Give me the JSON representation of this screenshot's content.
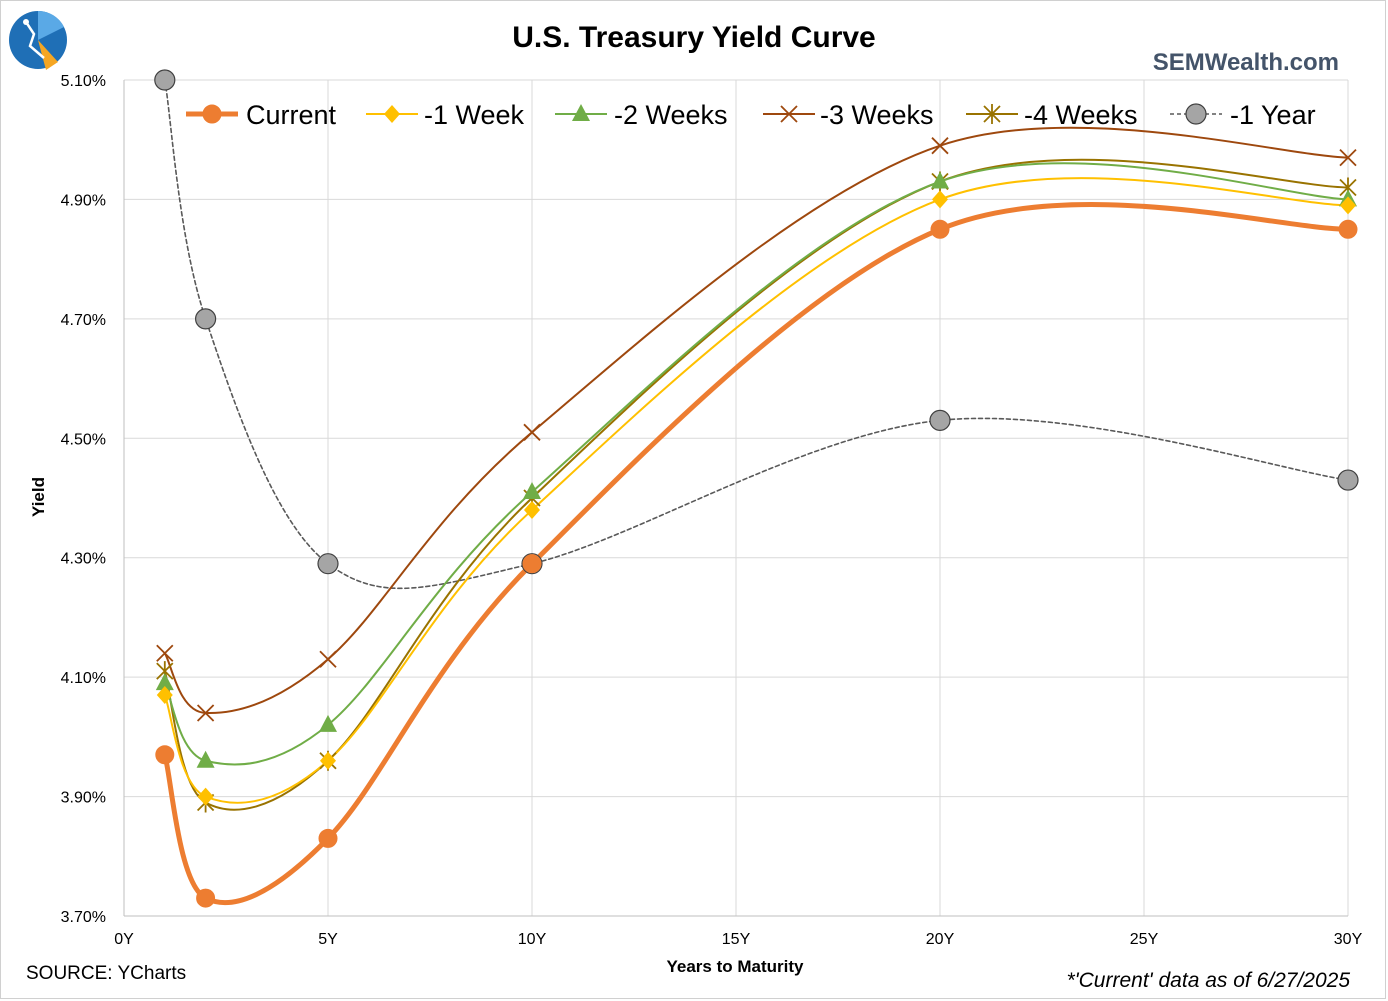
{
  "brand": {
    "site": "SEMWealth.com",
    "logo_name": "semwealth-logo-icon"
  },
  "footer": {
    "source": "SOURCE: YCharts",
    "note": "*'Current' data as of 6/27/2025"
  },
  "colors": {
    "current": "#ed7d31",
    "week1": "#ffc000",
    "week2": "#70ad47",
    "week3": "#9e480e",
    "week4": "#997300",
    "year1": "#595959",
    "year1_marker": "#a5a5a5",
    "grid": "#d9d9d9"
  },
  "chart_data": {
    "type": "line",
    "title": "U.S. Treasury Yield Curve",
    "xlabel": "Years to Maturity",
    "ylabel": "Yield",
    "xlim": [
      0,
      30
    ],
    "ylim": [
      3.7,
      5.1
    ],
    "x_ticks": [
      0,
      5,
      10,
      15,
      20,
      25,
      30
    ],
    "x_tick_labels": [
      "0Y",
      "5Y",
      "10Y",
      "15Y",
      "20Y",
      "25Y",
      "30Y"
    ],
    "y_ticks": [
      3.7,
      3.9,
      4.1,
      4.3,
      4.5,
      4.7,
      4.9,
      5.1
    ],
    "y_tick_labels": [
      "3.70%",
      "3.90%",
      "4.10%",
      "4.30%",
      "4.50%",
      "4.70%",
      "4.90%",
      "5.10%"
    ],
    "grid": "vertical and horizontal",
    "legend_position": "top",
    "x": [
      1,
      2,
      5,
      10,
      20,
      30
    ],
    "series": [
      {
        "key": "current",
        "name": "Current",
        "marker": "circle",
        "values": [
          3.97,
          3.73,
          3.83,
          4.29,
          4.85,
          4.85
        ]
      },
      {
        "key": "week1",
        "name": "-1 Week",
        "marker": "diamond",
        "values": [
          4.07,
          3.9,
          3.96,
          4.38,
          4.9,
          4.89
        ]
      },
      {
        "key": "week2",
        "name": "-2 Weeks",
        "marker": "triangle",
        "values": [
          4.09,
          3.96,
          4.02,
          4.41,
          4.93,
          4.9
        ]
      },
      {
        "key": "week3",
        "name": "-3 Weeks",
        "marker": "x",
        "values": [
          4.14,
          4.04,
          4.13,
          4.51,
          4.99,
          4.97
        ]
      },
      {
        "key": "week4",
        "name": "-4 Weeks",
        "marker": "star",
        "values": [
          4.11,
          3.89,
          3.96,
          4.4,
          4.93,
          4.92
        ]
      },
      {
        "key": "year1",
        "name": "-1 Year",
        "marker": "circle-gray",
        "values": [
          5.1,
          4.7,
          4.29,
          4.29,
          4.53,
          4.43
        ]
      }
    ]
  }
}
